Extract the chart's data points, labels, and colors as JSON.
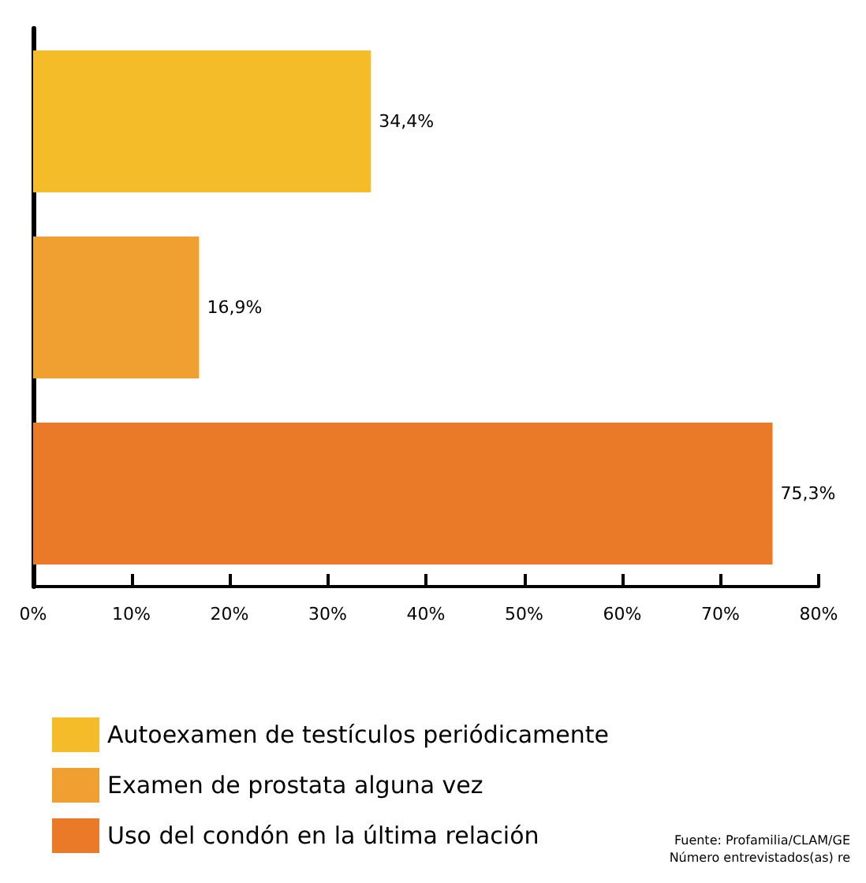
{
  "chart_data": {
    "type": "bar",
    "orientation": "horizontal",
    "categories": [
      null,
      null,
      null
    ],
    "series": [
      {
        "name": "Autoexamen de testículos periódicamente",
        "color": "#f5bc2a",
        "values": [
          34.4,
          null,
          null
        ],
        "value_labels": [
          "34,4%",
          null,
          null
        ]
      },
      {
        "name": "Examen de prostata alguna vez",
        "color": "#f0a030",
        "values": [
          null,
          16.9,
          null
        ],
        "value_labels": [
          null,
          "16,9%",
          null
        ]
      },
      {
        "name": "Uso del condón en la última relación",
        "color": "#ea7a28",
        "values": [
          null,
          null,
          75.3
        ],
        "value_labels": [
          null,
          null,
          "75,3%"
        ]
      }
    ],
    "xlim": [
      0,
      80
    ],
    "xticks": [
      {
        "value": 0,
        "label": "0%"
      },
      {
        "value": 10,
        "label": "10%"
      },
      {
        "value": 20,
        "label": "20%"
      },
      {
        "value": 30,
        "label": "30%"
      },
      {
        "value": 40,
        "label": "40%"
      },
      {
        "value": 50,
        "label": "50%"
      },
      {
        "value": 60,
        "label": "60%"
      },
      {
        "value": 70,
        "label": "70%"
      },
      {
        "value": 80,
        "label": "80%"
      }
    ],
    "grid": false,
    "legend": "bottom left",
    "annotations": [
      "Fuente: Profamilia/CLAM/GE",
      "Número entrevistados(as) re"
    ]
  }
}
